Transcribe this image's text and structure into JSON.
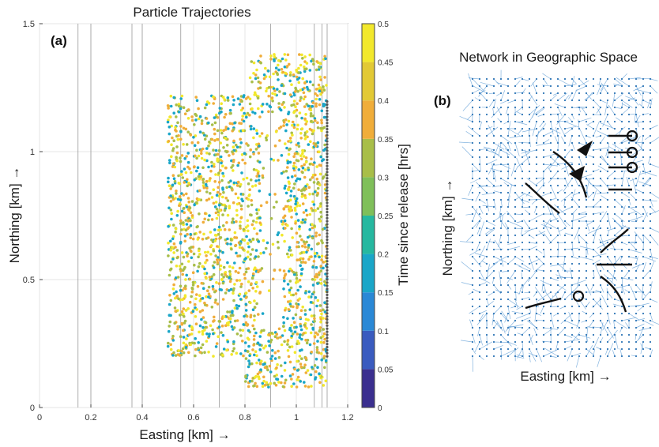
{
  "chart_data": [
    {
      "type": "scatter",
      "panel_label": "(a)",
      "title": "Particle Trajectories",
      "xlabel": "Easting [km] →",
      "ylabel": "Northing [km] →",
      "xlim": [
        0,
        1.2
      ],
      "ylim": [
        0,
        1.5
      ],
      "xticks": [
        "0",
        "0.2",
        "0.4",
        "0.6",
        "0.8",
        "1",
        "1.2"
      ],
      "yticks": [
        "0",
        "0.5",
        "1",
        "1.5"
      ],
      "grid": true,
      "vertical_lines_x": [
        0.15,
        0.2,
        0.36,
        0.4,
        0.55,
        0.7,
        0.9,
        1.07,
        1.1,
        1.12
      ],
      "release_region": {
        "x": [
          0.5,
          1.12
        ],
        "y": [
          0.08,
          1.38
        ]
      },
      "colorbar": {
        "label": "Time since release [hrs]",
        "range": [
          0,
          0.5
        ],
        "ticks": [
          "0",
          "0.05",
          "0.1",
          "0.15",
          "0.2",
          "0.25",
          "0.3",
          "0.35",
          "0.4",
          "0.45",
          "0.5"
        ],
        "colors": [
          "#3b2f8f",
          "#3a5bbf",
          "#2a88d6",
          "#1aa6c8",
          "#26b8a0",
          "#7fbf5a",
          "#a8be49",
          "#f0ad3a",
          "#e2c935",
          "#f2e82c"
        ]
      }
    },
    {
      "type": "diagram",
      "panel_label": "(b)",
      "title": "Network in Geographic Space",
      "xlabel": "Easting [km] →",
      "ylabel": "Northing [km] →",
      "edge_color": "#5b9bd5",
      "node_color": "#2e75b6"
    }
  ]
}
